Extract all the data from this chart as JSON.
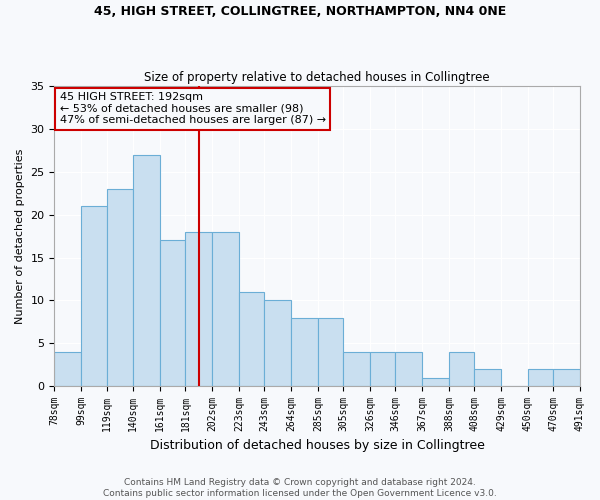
{
  "title1": "45, HIGH STREET, COLLINGTREE, NORTHAMPTON, NN4 0NE",
  "title2": "Size of property relative to detached houses in Collingtree",
  "xlabel": "Distribution of detached houses by size in Collingtree",
  "ylabel": "Number of detached properties",
  "bin_edges": [
    78,
    99,
    119,
    140,
    161,
    181,
    202,
    223,
    243,
    264,
    285,
    305,
    326,
    346,
    367,
    388,
    408,
    429,
    450,
    470,
    491
  ],
  "bar_heights": [
    4,
    21,
    23,
    27,
    17,
    18,
    18,
    11,
    10,
    8,
    8,
    4,
    4,
    4,
    1,
    4,
    2,
    0,
    2,
    2
  ],
  "bar_color": "#c9dff0",
  "bar_edge_color": "#6baed6",
  "vline_x": 192,
  "vline_color": "#cc0000",
  "ylim": [
    0,
    35
  ],
  "yticks": [
    0,
    5,
    10,
    15,
    20,
    25,
    30,
    35
  ],
  "annotation_text": "45 HIGH STREET: 192sqm\n← 53% of detached houses are smaller (98)\n47% of semi-detached houses are larger (87) →",
  "annotation_box_edge_color": "#cc0000",
  "footer_text": "Contains HM Land Registry data © Crown copyright and database right 2024.\nContains public sector information licensed under the Open Government Licence v3.0.",
  "tick_labels": [
    "78sqm",
    "99sqm",
    "119sqm",
    "140sqm",
    "161sqm",
    "181sqm",
    "202sqm",
    "223sqm",
    "243sqm",
    "264sqm",
    "285sqm",
    "305sqm",
    "326sqm",
    "346sqm",
    "367sqm",
    "388sqm",
    "408sqm",
    "429sqm",
    "450sqm",
    "470sqm",
    "491sqm"
  ],
  "bg_color": "#f7f9fc",
  "grid_color": "#ffffff",
  "title1_fontsize": 9,
  "title2_fontsize": 8.5,
  "ylabel_fontsize": 8,
  "xlabel_fontsize": 9,
  "tick_fontsize": 7,
  "footer_fontsize": 6.5,
  "ann_fontsize": 8
}
